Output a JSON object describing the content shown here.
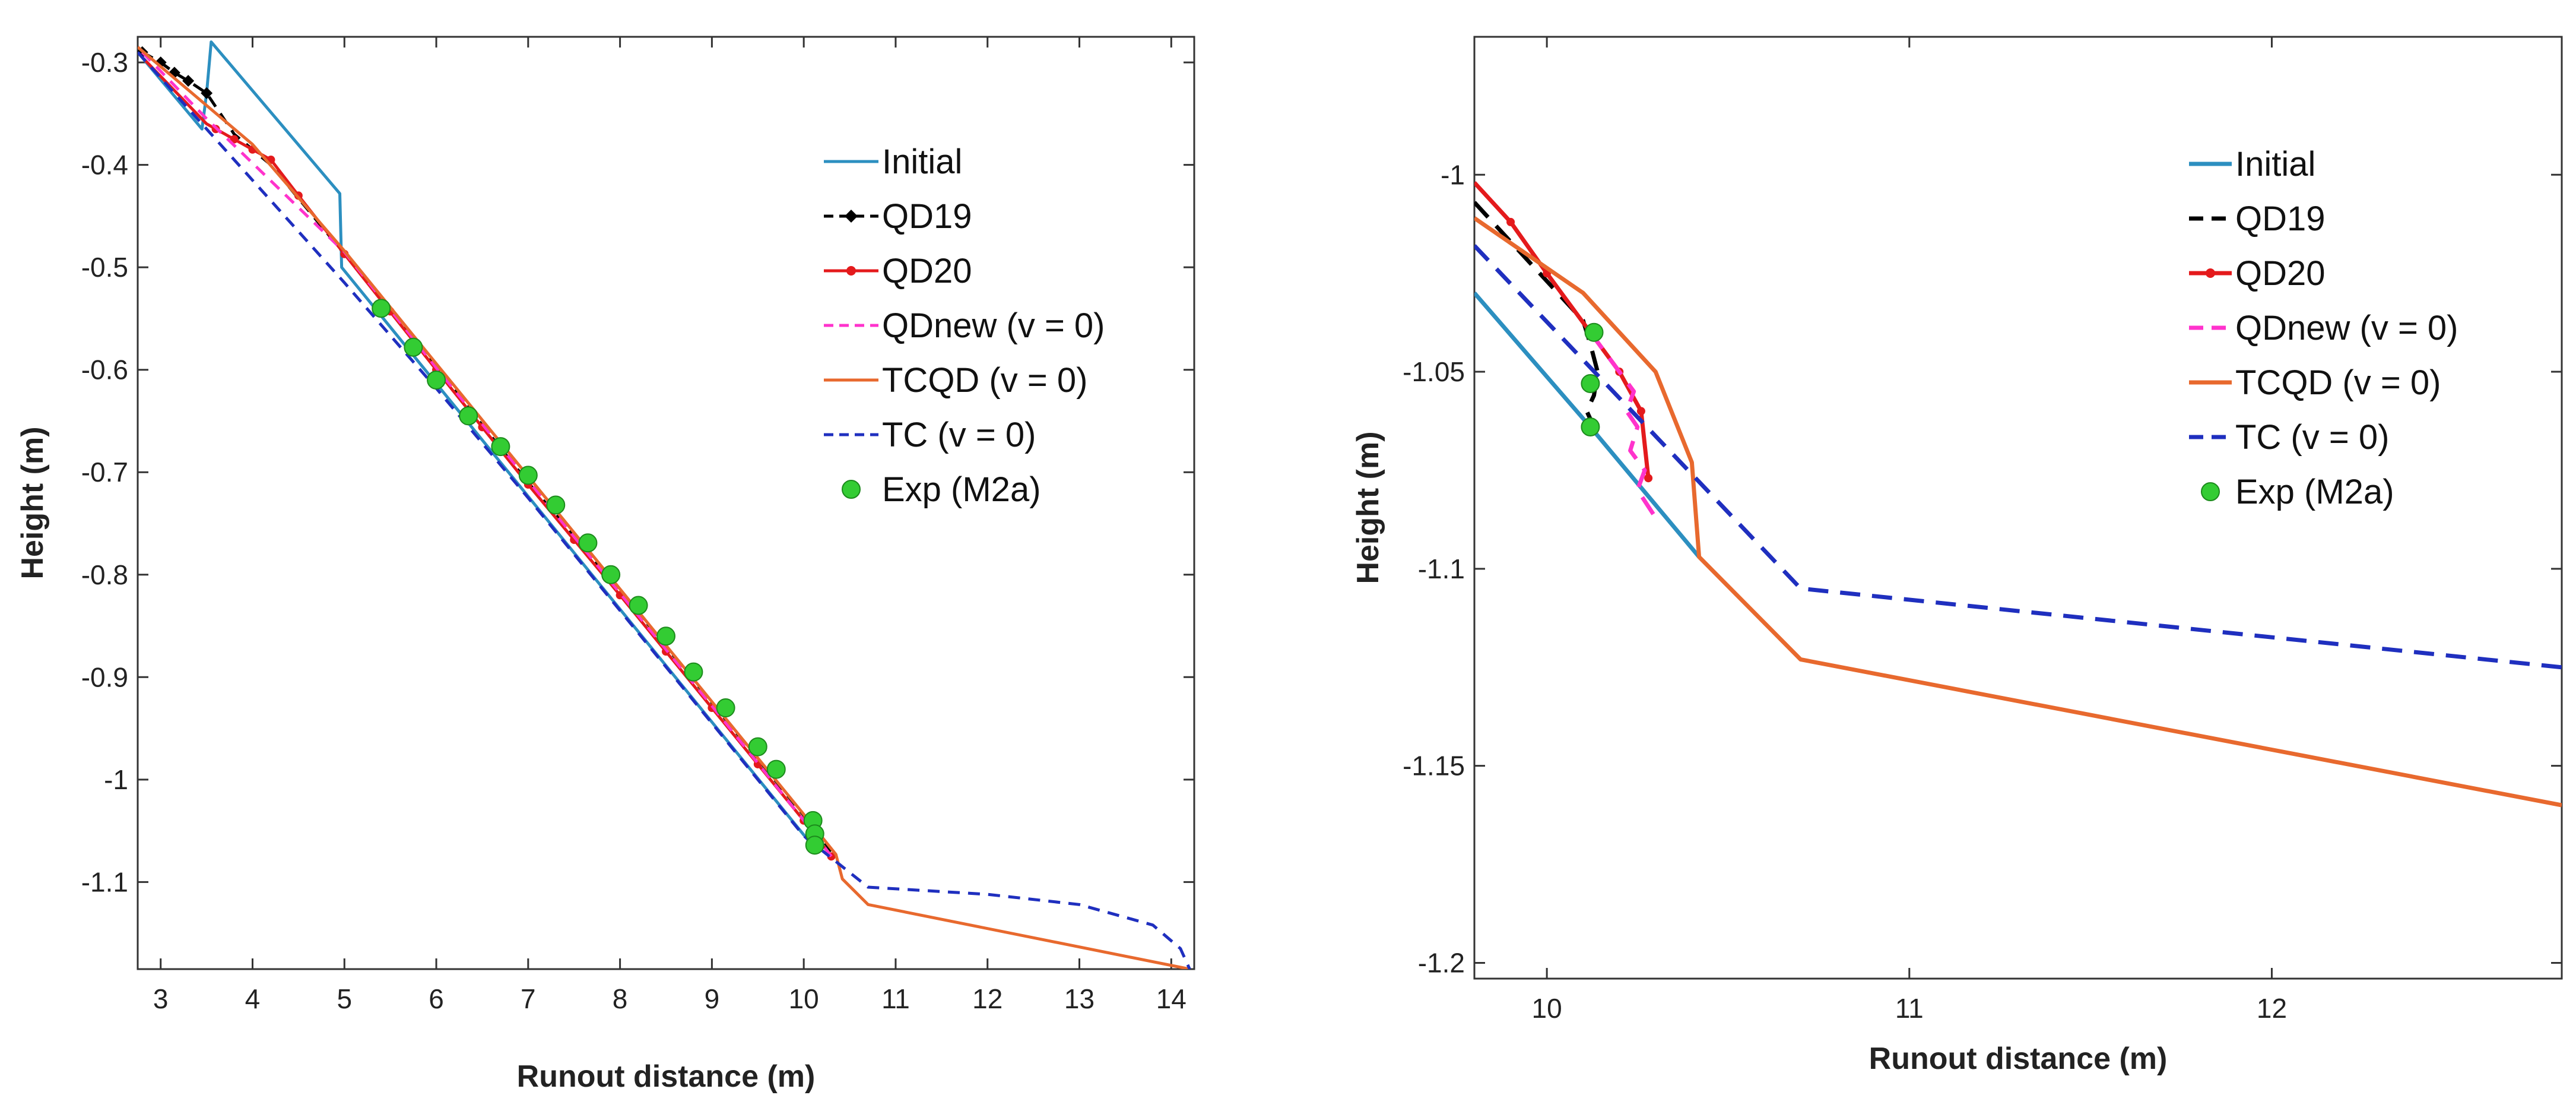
{
  "chart_data": [
    {
      "type": "line",
      "title": "",
      "xlabel": "Runout distance (m)",
      "ylabel": "Height (m)",
      "xlim": [
        2.75,
        14.25
      ],
      "ylim": [
        -1.185,
        -0.275
      ],
      "xticks": [
        3,
        4,
        5,
        6,
        7,
        8,
        9,
        10,
        11,
        12,
        13,
        14
      ],
      "xtick_labels": [
        "3",
        "4",
        "5",
        "6",
        "7",
        "8",
        "9",
        "10",
        "11",
        "12",
        "13",
        "14"
      ],
      "yticks": [
        -0.3,
        -0.4,
        -0.5,
        -0.6,
        -0.7,
        -0.8,
        -0.9,
        -1.0,
        -1.1
      ],
      "ytick_labels": [
        "-0.3",
        "-0.4",
        "-0.5",
        "-0.6",
        "-0.7",
        "-0.8",
        "-0.9",
        "-1",
        "-1.1"
      ],
      "legend_position": "top-right",
      "grid": false,
      "series": [
        {
          "name": "Initial",
          "color": "#2c8fc0",
          "style": "solid",
          "marker": "none",
          "x": [
            2.75,
            3.45,
            3.5,
            3.55,
            4.95,
            4.97,
            10.1
          ],
          "y": [
            -0.29,
            -0.365,
            -0.33,
            -0.28,
            -0.428,
            -0.5,
            -1.065
          ]
        },
        {
          "name": "QD19",
          "color": "#000000",
          "style": "dashed",
          "marker": "diamond",
          "x": [
            2.8,
            3.0,
            3.15,
            3.3,
            3.5,
            3.8,
            4.2,
            5.0,
            6.0,
            7.0,
            8.0,
            9.0,
            10.0,
            10.3
          ],
          "y": [
            -0.29,
            -0.3,
            -0.31,
            -0.318,
            -0.33,
            -0.37,
            -0.4,
            -0.487,
            -0.598,
            -0.71,
            -0.815,
            -0.925,
            -1.035,
            -1.07
          ],
          "marker_x": [
            2.8,
            3.0,
            3.15,
            3.3,
            3.5
          ],
          "marker_y": [
            -0.29,
            -0.3,
            -0.31,
            -0.318,
            -0.33
          ]
        },
        {
          "name": "QD20",
          "color": "#e41a1c",
          "style": "solid",
          "marker": "dot",
          "x": [
            2.8,
            3.5,
            3.8,
            4.0,
            4.2,
            4.5,
            5.0,
            6.0,
            7.0,
            8.0,
            9.0,
            10.0,
            10.3
          ],
          "y": [
            -0.295,
            -0.36,
            -0.375,
            -0.385,
            -0.395,
            -0.43,
            -0.487,
            -0.6,
            -0.712,
            -0.82,
            -0.93,
            -1.04,
            -1.075
          ],
          "marker_x": [
            3.6,
            3.8,
            4.0,
            4.2,
            4.5,
            5.0,
            5.5,
            6.0,
            6.5,
            7.0,
            7.5,
            8.0,
            8.5,
            9.0,
            9.5,
            10.0,
            10.3
          ],
          "marker_y": [
            -0.365,
            -0.375,
            -0.385,
            -0.395,
            -0.43,
            -0.487,
            -0.543,
            -0.6,
            -0.656,
            -0.712,
            -0.766,
            -0.82,
            -0.875,
            -0.93,
            -0.985,
            -1.04,
            -1.075
          ]
        },
        {
          "name": "QDnew (v = 0)",
          "color": "#ff33cc",
          "style": "dashed",
          "marker": "none",
          "x": [
            2.8,
            3.5,
            5.0,
            6.0,
            7.0,
            8.0,
            9.0,
            10.0,
            10.3
          ],
          "y": [
            -0.29,
            -0.355,
            -0.485,
            -0.598,
            -0.708,
            -0.818,
            -0.928,
            -1.04,
            -1.075
          ]
        },
        {
          "name": "TCQD (v = 0)",
          "color": "#e8692e",
          "style": "solid",
          "marker": "none",
          "x": [
            2.75,
            4.0,
            5.0,
            6.0,
            7.0,
            8.0,
            9.0,
            10.0,
            10.35,
            10.42,
            10.7,
            14.2
          ],
          "y": [
            -0.285,
            -0.38,
            -0.484,
            -0.594,
            -0.704,
            -0.814,
            -0.924,
            -1.034,
            -1.073,
            -1.097,
            -1.122,
            -1.185
          ]
        },
        {
          "name": "TC (v = 0)",
          "color": "#1f2fbf",
          "style": "dashed",
          "marker": "none",
          "x": [
            2.75,
            5.0,
            6.0,
            7.0,
            8.0,
            9.0,
            10.0,
            10.7,
            12.0,
            13.0,
            13.8,
            14.1,
            14.2
          ],
          "y": [
            -0.29,
            -0.515,
            -0.618,
            -0.725,
            -0.835,
            -0.945,
            -1.055,
            -1.105,
            -1.112,
            -1.122,
            -1.142,
            -1.165,
            -1.185
          ]
        },
        {
          "name": "Exp (M2a)",
          "color": "#33cc33",
          "style": "none",
          "marker": "circle",
          "x": [
            5.4,
            5.75,
            6.0,
            6.35,
            6.7,
            7.0,
            7.3,
            7.65,
            7.9,
            8.2,
            8.5,
            8.8,
            9.15,
            9.5,
            9.7,
            10.1,
            10.12,
            10.12
          ],
          "y": [
            -0.54,
            -0.578,
            -0.61,
            -0.645,
            -0.675,
            -0.703,
            -0.732,
            -0.769,
            -0.8,
            -0.83,
            -0.86,
            -0.895,
            -0.93,
            -0.968,
            -0.99,
            -1.04,
            -1.053,
            -1.064
          ]
        }
      ]
    },
    {
      "type": "line",
      "title": "",
      "xlabel": "Runout distance (m)",
      "ylabel": "Height (m)",
      "xlim": [
        9.8,
        12.8
      ],
      "ylim": [
        -1.204,
        -0.965
      ],
      "xticks": [
        10,
        11,
        12
      ],
      "xtick_labels": [
        "10",
        "11",
        "12"
      ],
      "yticks": [
        -1.0,
        -1.05,
        -1.1,
        -1.15,
        -1.2
      ],
      "ytick_labels": [
        "-1",
        "-1.05",
        "-1.1",
        "-1.15",
        "-1.2"
      ],
      "legend_position": "top-right",
      "grid": false,
      "series": [
        {
          "name": "Initial",
          "color": "#2c8fc0",
          "style": "solid",
          "marker": "none",
          "x": [
            9.8,
            10.12,
            10.42
          ],
          "y": [
            -1.03,
            -1.064,
            -1.097
          ]
        },
        {
          "name": "QD19",
          "color": "#000000",
          "style": "dashed",
          "marker": "none",
          "x": [
            9.8,
            10.1,
            10.12,
            10.14,
            10.13,
            10.11,
            10.13
          ],
          "y": [
            -1.007,
            -1.037,
            -1.043,
            -1.05,
            -1.056,
            -1.06,
            -1.064
          ]
        },
        {
          "name": "QD20",
          "color": "#e41a1c",
          "style": "solid",
          "marker": "dot",
          "x": [
            9.8,
            9.9,
            10.0,
            10.12,
            10.2,
            10.26,
            10.28
          ],
          "y": [
            -1.002,
            -1.012,
            -1.025,
            -1.04,
            -1.05,
            -1.06,
            -1.077
          ],
          "marker_x": [
            9.9,
            10.0,
            10.12,
            10.2,
            10.26,
            10.28
          ],
          "marker_y": [
            -1.012,
            -1.025,
            -1.04,
            -1.05,
            -1.06,
            -1.077
          ]
        },
        {
          "name": "QDnew (v = 0)",
          "color": "#ff33cc",
          "style": "dashed",
          "marker": "none",
          "x": [
            10.12,
            10.16,
            10.2,
            10.24,
            10.22,
            10.25,
            10.23,
            10.27,
            10.25,
            10.3
          ],
          "y": [
            -1.04,
            -1.045,
            -1.05,
            -1.055,
            -1.06,
            -1.064,
            -1.07,
            -1.075,
            -1.08,
            -1.087
          ]
        },
        {
          "name": "TCQD (v = 0)",
          "color": "#e8692e",
          "style": "solid",
          "marker": "none",
          "x": [
            9.8,
            10.1,
            10.3,
            10.4,
            10.42,
            10.7,
            12.8
          ],
          "y": [
            -1.011,
            -1.03,
            -1.05,
            -1.073,
            -1.097,
            -1.123,
            -1.16
          ]
        },
        {
          "name": "TC (v = 0)",
          "color": "#1f2fbf",
          "style": "dashed",
          "marker": "none",
          "x": [
            9.8,
            10.7,
            12.8
          ],
          "y": [
            -1.018,
            -1.105,
            -1.125
          ]
        },
        {
          "name": "Exp (M2a)",
          "color": "#33cc33",
          "style": "none",
          "marker": "circle",
          "x": [
            10.13,
            10.12,
            10.12
          ],
          "y": [
            -1.04,
            -1.053,
            -1.064
          ]
        }
      ]
    }
  ]
}
